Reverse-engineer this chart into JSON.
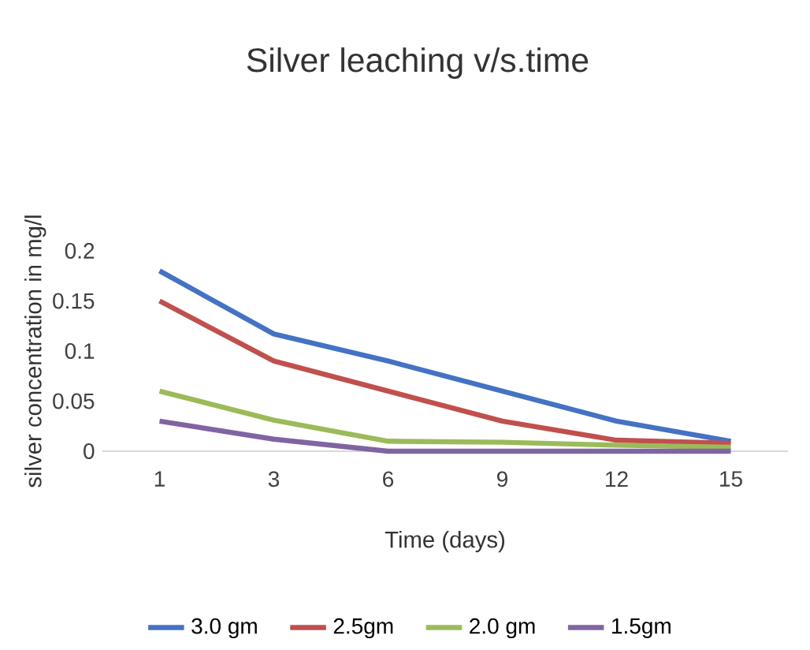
{
  "chart_data": {
    "type": "line",
    "title": "Silver leaching v/s.time",
    "xlabel": "Time (days)",
    "ylabel": "silver concentration  in mg/l",
    "categories": [
      "1",
      "3",
      "6",
      "9",
      "12",
      "15"
    ],
    "series": [
      {
        "name": "3.0 gm",
        "color": "#4472c4",
        "values": [
          0.18,
          0.117,
          0.09,
          0.06,
          0.03,
          0.01
        ]
      },
      {
        "name": "2.5gm",
        "color": "#c0504d",
        "values": [
          0.15,
          0.09,
          0.06,
          0.03,
          0.011,
          0.008
        ]
      },
      {
        "name": "2.0 gm",
        "color": "#9bbb59",
        "values": [
          0.06,
          0.031,
          0.01,
          0.009,
          0.006,
          0.004
        ]
      },
      {
        "name": "1.5gm",
        "color": "#8064a2",
        "values": [
          0.03,
          0.012,
          0.0,
          0.0,
          0.0,
          0.0
        ]
      }
    ],
    "ylim": [
      0,
      0.2
    ],
    "yticks": [
      0,
      0.05,
      0.1,
      0.15,
      0.2
    ],
    "grid": false,
    "legend": "bottom",
    "marker": "none",
    "line_style": "solid"
  }
}
